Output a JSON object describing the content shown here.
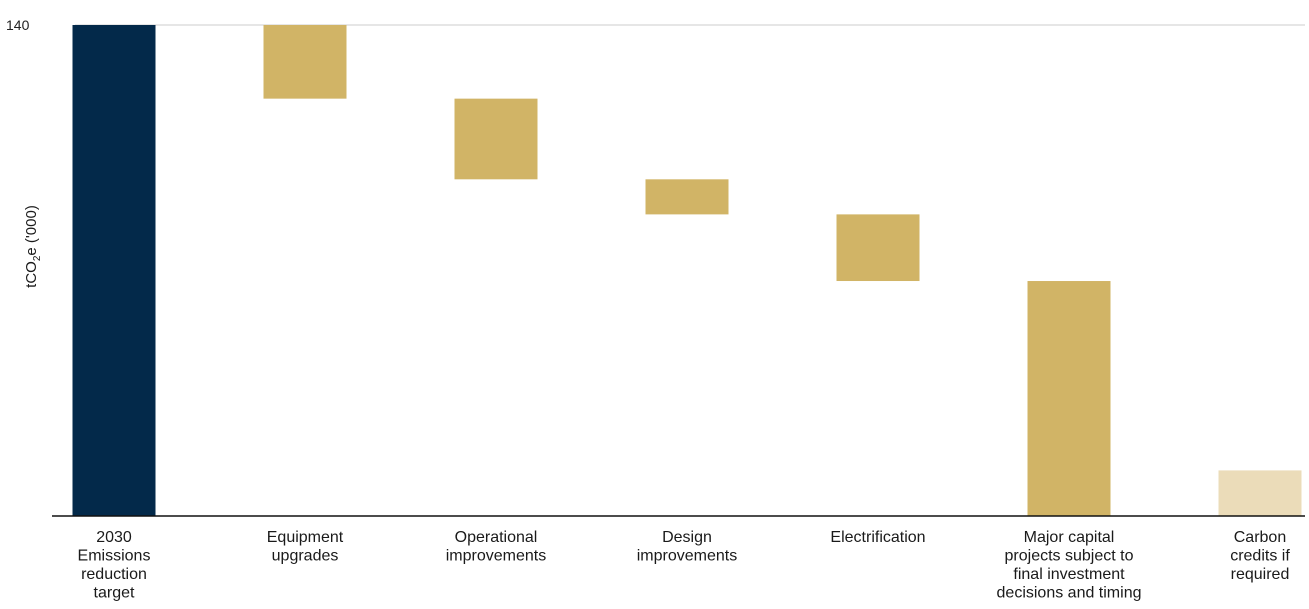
{
  "chart_data": {
    "type": "bar",
    "subtype": "waterfall",
    "title": "",
    "xlabel": "",
    "ylabel": {
      "prefix": "tCO",
      "subscript": "2",
      "suffix": "e ('000)"
    },
    "ylim": [
      0,
      140
    ],
    "y_ticks_labeled": [
      140
    ],
    "grid": false,
    "legend": "none",
    "categories": [
      "2030 Emissions reduction target",
      "Equipment upgrades",
      "Operational improvements",
      "Design improvements",
      "Electrification",
      "Major capital projects subject to final investment decisions and timing",
      "Carbon credits if required"
    ],
    "category_lines": [
      [
        "2030",
        "Emissions",
        "reduction",
        "target"
      ],
      [
        "Equipment",
        "upgrades"
      ],
      [
        "Operational",
        "improvements"
      ],
      [
        "Design",
        "improvements"
      ],
      [
        "Electrification"
      ],
      [
        "Major capital",
        "projects subject to",
        "final investment",
        "decisions and timing"
      ],
      [
        "Carbon",
        "credits if",
        "required"
      ]
    ],
    "bars": [
      {
        "start": 0,
        "end": 140,
        "kind": "total"
      },
      {
        "start": 119,
        "end": 140,
        "kind": "reduction"
      },
      {
        "start": 96,
        "end": 119,
        "kind": "reduction"
      },
      {
        "start": 86,
        "end": 96,
        "kind": "reduction"
      },
      {
        "start": 67,
        "end": 86,
        "kind": "reduction"
      },
      {
        "start": 0,
        "end": 67,
        "kind": "reduction"
      },
      {
        "start": 0,
        "end": 13,
        "kind": "credit"
      }
    ],
    "colors": {
      "total": "#03294a",
      "reduction": "#d1b466",
      "credit": "#ebdcb9",
      "axis": "#111111",
      "gridline": "#cccccc"
    }
  }
}
